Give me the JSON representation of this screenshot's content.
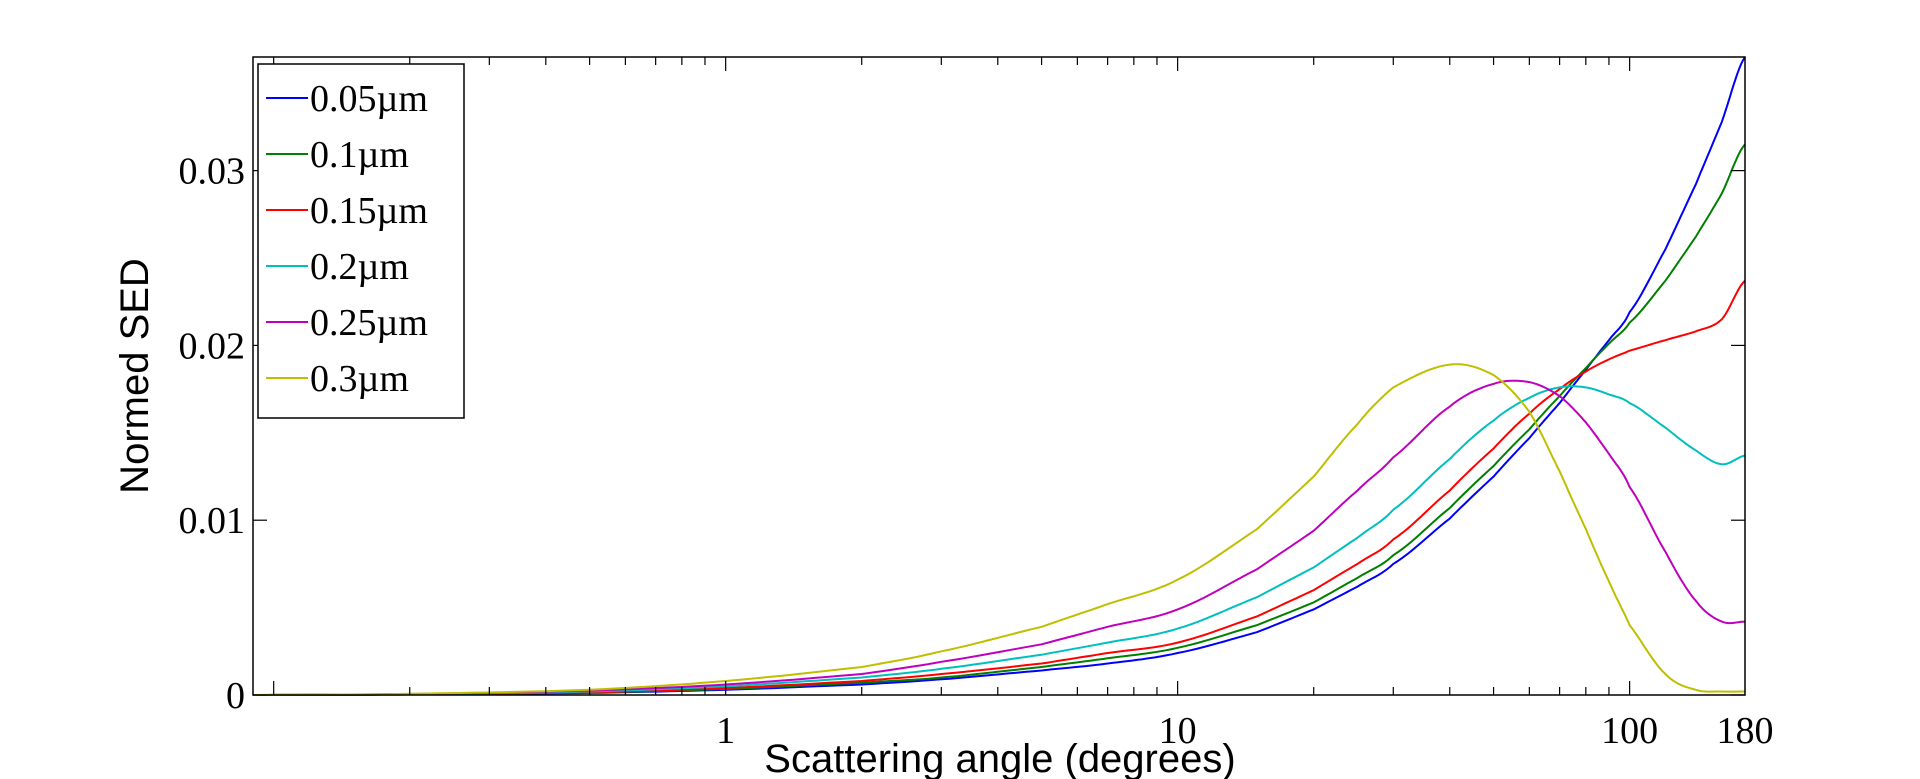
{
  "chart_data": {
    "type": "line",
    "xlabel": "Scattering angle (degrees)",
    "ylabel": "Normed SED",
    "xscale": "log",
    "xlim": [
      0.09,
      180
    ],
    "ylim": [
      0,
      0.0365
    ],
    "x_ticks": [
      {
        "value": 1,
        "label": "1"
      },
      {
        "value": 10,
        "label": "10"
      },
      {
        "value": 100,
        "label": "100"
      },
      {
        "value": 180,
        "label": "180"
      }
    ],
    "y_ticks": [
      {
        "value": 0,
        "label": "0"
      },
      {
        "value": 0.01,
        "label": "0.01"
      },
      {
        "value": 0.02,
        "label": "0.02"
      },
      {
        "value": 0.03,
        "label": "0.03"
      }
    ],
    "grid": false,
    "legend_position": "top-left",
    "x": [
      0.09,
      0.2,
      0.5,
      1,
      2,
      3,
      5,
      7,
      10,
      15,
      20,
      25,
      30,
      40,
      50,
      60,
      70,
      80,
      90,
      100,
      120,
      140,
      160,
      180
    ],
    "series": [
      {
        "name": "0.05µm",
        "color": "#0000ff",
        "values": [
          0,
          3e-05,
          0.00012,
          0.0003,
          0.0006,
          0.0009,
          0.0014,
          0.0018,
          0.0024,
          0.0036,
          0.0049,
          0.0062,
          0.0075,
          0.0101,
          0.0125,
          0.0147,
          0.0167,
          0.0186,
          0.0203,
          0.0219,
          0.0255,
          0.0292,
          0.0328,
          0.0365
        ]
      },
      {
        "name": "0.1µm",
        "color": "#007f00",
        "values": [
          0,
          4e-05,
          0.00014,
          0.00035,
          0.0007,
          0.001,
          0.0016,
          0.0021,
          0.0027,
          0.004,
          0.0053,
          0.0067,
          0.008,
          0.0107,
          0.0131,
          0.0152,
          0.0171,
          0.0187,
          0.0201,
          0.0213,
          0.0237,
          0.0262,
          0.0287,
          0.0315
        ]
      },
      {
        "name": "0.15µm",
        "color": "#ff0000",
        "values": [
          0,
          4e-05,
          0.00016,
          0.0004,
          0.0008,
          0.0012,
          0.0018,
          0.0024,
          0.003,
          0.0045,
          0.006,
          0.0075,
          0.0089,
          0.0117,
          0.0141,
          0.0161,
          0.0175,
          0.0185,
          0.0192,
          0.0197,
          0.0203,
          0.0208,
          0.0215,
          0.0237
        ]
      },
      {
        "name": "0.2µm",
        "color": "#00bfbf",
        "values": [
          0,
          5e-05,
          0.0002,
          0.0005,
          0.001,
          0.0015,
          0.0023,
          0.003,
          0.0038,
          0.0056,
          0.0073,
          0.009,
          0.0106,
          0.0135,
          0.0157,
          0.017,
          0.0176,
          0.0176,
          0.0172,
          0.0167,
          0.0153,
          0.014,
          0.0132,
          0.0137
        ]
      },
      {
        "name": "0.25µm",
        "color": "#bf00bf",
        "values": [
          0,
          6e-05,
          0.00025,
          0.0006,
          0.0012,
          0.0019,
          0.0029,
          0.0039,
          0.0049,
          0.0072,
          0.0094,
          0.0117,
          0.0136,
          0.0165,
          0.0178,
          0.0179,
          0.0171,
          0.0156,
          0.0138,
          0.0119,
          0.0082,
          0.0054,
          0.0042,
          0.0042
        ]
      },
      {
        "name": "0.3µm",
        "color": "#bfbf00",
        "values": [
          0,
          7e-05,
          0.0003,
          0.0008,
          0.0016,
          0.0025,
          0.0039,
          0.0052,
          0.0066,
          0.0095,
          0.0125,
          0.0155,
          0.0176,
          0.0189,
          0.0183,
          0.0162,
          0.0128,
          0.0095,
          0.0065,
          0.004,
          0.0012,
          0.0003,
          0.0002,
          0.0002
        ]
      }
    ]
  }
}
